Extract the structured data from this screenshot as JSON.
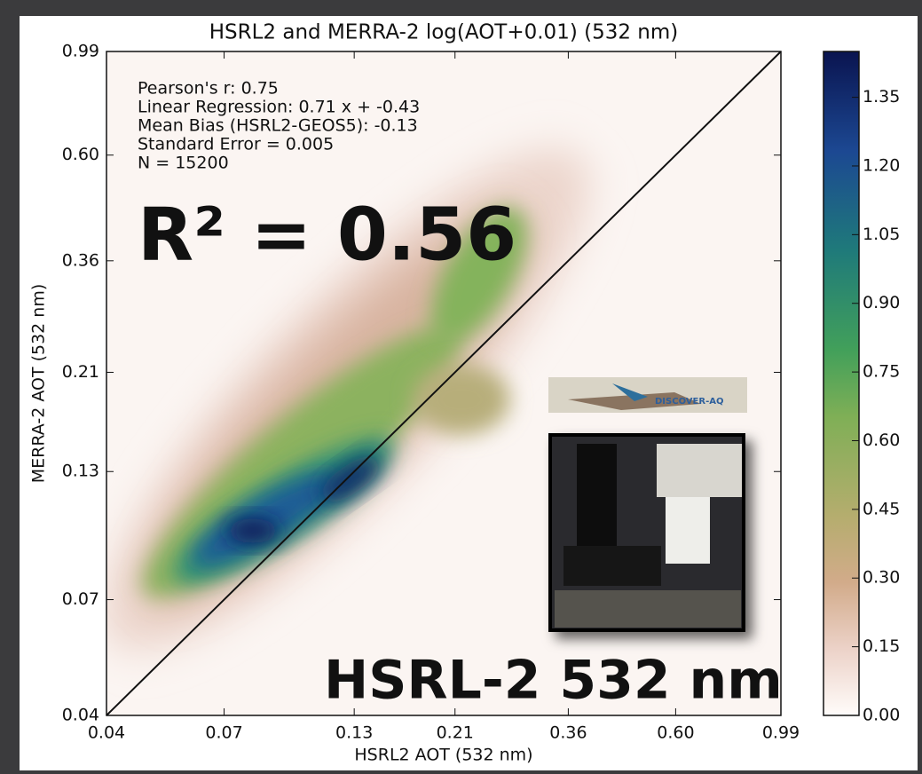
{
  "chart_data": {
    "type": "density",
    "title": "HSRL2 and MERRA-2 log(AOT+0.01) (532 nm)",
    "xlabel": "HSRL2 AOT (532 nm)",
    "ylabel": "MERRA-2 AOT (532 nm)",
    "xscale": "log",
    "yscale": "log",
    "xlim": [
      0.04,
      0.99
    ],
    "ylim": [
      0.04,
      0.99
    ],
    "xticks": [
      0.04,
      0.07,
      0.13,
      0.21,
      0.36,
      {
        "value": 0.6,
        "label": "0.60"
      },
      0.99
    ],
    "yticks": [
      0.04,
      0.07,
      0.13,
      0.21,
      0.36,
      {
        "value": 0.6,
        "label": "0.60"
      },
      0.99
    ],
    "colorbar": {
      "lim": [
        0,
        1.45
      ],
      "ticks": [
        {
          "value": 0,
          "label": "0.00"
        },
        0.15,
        {
          "value": 0.3,
          "label": "0.30"
        },
        0.45,
        {
          "value": 0.6,
          "label": "0.60"
        },
        0.75,
        {
          "value": 0.9,
          "label": "0.90"
        },
        1.05,
        {
          "value": 1.2,
          "label": "1.20"
        },
        1.35
      ]
    },
    "stats": [
      "Pearson's r: 0.75",
      "Linear Regression: 0.71 x + -0.43",
      "Mean Bias (HSRL2-GEOS5): -0.13",
      "Standard Error =  0.005",
      "N =  15200"
    ],
    "r2_label": "R² = 0.56",
    "instrument_label": "HSRL-2 532 nm",
    "inset_logo": "DISCOVER-AQ"
  }
}
